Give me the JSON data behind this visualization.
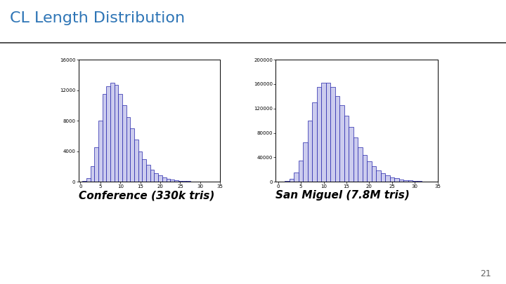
{
  "title": "CL Length Distribution",
  "title_color": "#2e75b6",
  "title_fontsize": 16,
  "slide_number": "21",
  "conf_label": "Conference (330k tris)",
  "san_label": "San Miguel (7.8M tris)",
  "label_fontsize": 11,
  "bar_color": "#ccccee",
  "bar_edge_color": "#2222aa",
  "conf_values": [
    0,
    100,
    500,
    2000,
    4500,
    8000,
    11500,
    12500,
    13000,
    12700,
    11500,
    10000,
    8500,
    7000,
    5500,
    4000,
    3000,
    2200,
    1600,
    1100,
    800,
    600,
    400,
    300,
    200,
    150,
    100,
    80,
    60,
    40,
    20,
    10,
    5,
    2,
    1
  ],
  "san_values": [
    0,
    200,
    1000,
    5000,
    15000,
    35000,
    65000,
    100000,
    130000,
    155000,
    162000,
    162000,
    155000,
    140000,
    125000,
    108000,
    90000,
    73000,
    57000,
    44000,
    34000,
    25000,
    19000,
    14000,
    10000,
    7500,
    5500,
    4000,
    3000,
    2200,
    1600,
    1100,
    700,
    400,
    200
  ],
  "conf_ylim": [
    0,
    16000
  ],
  "san_ylim": [
    0,
    200000
  ],
  "conf_yticks": [
    0,
    4000,
    8000,
    12000,
    16000
  ],
  "san_yticks": [
    0,
    40000,
    80000,
    120000,
    160000,
    200000
  ],
  "xlim": [
    -0.5,
    35
  ],
  "xticks": [
    0,
    5,
    10,
    15,
    20,
    25,
    30,
    35
  ],
  "background_color": "#ffffff",
  "line_color": "#000000",
  "header_line_color": "#333333"
}
